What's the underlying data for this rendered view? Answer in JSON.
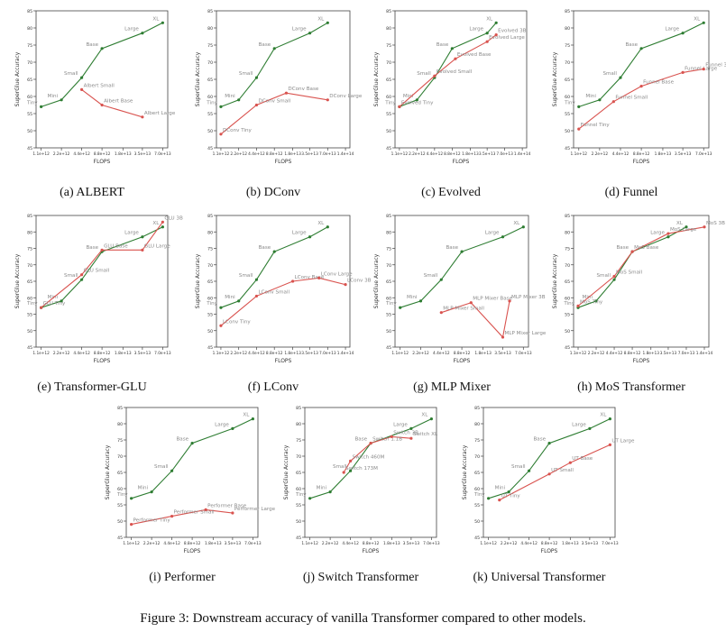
{
  "figure_caption": "Figure 3: Downstream accuracy of vanilla Transformer compared to other models.",
  "colors": {
    "baseline": "#2e7d32",
    "variant": "#d9534f",
    "axis": "#444444",
    "label": "#8a8a8a"
  },
  "common": {
    "xlabel": "FLOPS",
    "ylabel": "SuperGlue Accuracy",
    "yticks": [
      "45",
      "50",
      "55",
      "60",
      "65",
      "70",
      "75",
      "80",
      "85"
    ],
    "xticks_a": [
      "1.1e+12",
      "2.2e+12",
      "4.4e+12",
      "8.8e+12",
      "1.8e+13",
      "3.5e+13",
      "7.0e+13"
    ],
    "xticks_b": [
      "1.1e+12",
      "2.2e+12",
      "4.4e+12",
      "8.8e+12",
      "1.8e+13",
      "3.5e+13",
      "7.0e+13",
      "1.4e+14"
    ]
  },
  "chart_data": [
    {
      "type": "line",
      "caption": "(a) ALBERT",
      "xlabel": "FLOPS",
      "ylabel": "SuperGlue Accuracy",
      "x_scale": "log2",
      "xticks": "a",
      "ylim": [
        45,
        85
      ],
      "series": [
        {
          "role": "baseline",
          "points": [
            {
              "label": "Tiny",
              "x": 1100000000000.0,
              "y": 57.0
            },
            {
              "label": "Mini",
              "x": 2200000000000.0,
              "y": 59.0
            },
            {
              "label": "Small",
              "x": 4400000000000.0,
              "y": 65.5
            },
            {
              "label": "Base",
              "x": 8800000000000.0,
              "y": 74.0
            },
            {
              "label": "Large",
              "x": 35000000000000.0,
              "y": 78.5
            },
            {
              "label": "XL",
              "x": 70000000000000.0,
              "y": 81.5
            }
          ]
        },
        {
          "role": "variant",
          "points": [
            {
              "label": "Albert Small",
              "x": 4400000000000.0,
              "y": 62.0
            },
            {
              "label": "Albert Base",
              "x": 8800000000000.0,
              "y": 57.5
            },
            {
              "label": "Albert Large",
              "x": 35000000000000.0,
              "y": 54.0
            }
          ]
        }
      ]
    },
    {
      "type": "line",
      "caption": "(b) DConv",
      "xlabel": "FLOPS",
      "ylabel": "SuperGlue Accuracy",
      "x_scale": "log2",
      "xticks": "b",
      "ylim": [
        45,
        85
      ],
      "series": [
        {
          "role": "baseline",
          "points": [
            {
              "label": "Tiny",
              "x": 1100000000000.0,
              "y": 57.0
            },
            {
              "label": "Mini",
              "x": 2200000000000.0,
              "y": 59.0
            },
            {
              "label": "Small",
              "x": 4400000000000.0,
              "y": 65.5
            },
            {
              "label": "Base",
              "x": 8800000000000.0,
              "y": 74.0
            },
            {
              "label": "Large",
              "x": 35000000000000.0,
              "y": 78.5
            },
            {
              "label": "XL",
              "x": 70000000000000.0,
              "y": 81.5
            }
          ]
        },
        {
          "role": "variant",
          "points": [
            {
              "label": "DConv Tiny",
              "x": 1100000000000.0,
              "y": 49.0
            },
            {
              "label": "DConv Small",
              "x": 4400000000000.0,
              "y": 57.5
            },
            {
              "label": "DConv Base",
              "x": 14000000000000.0,
              "y": 61.0
            },
            {
              "label": "DConv Large",
              "x": 70000000000000.0,
              "y": 59.0
            }
          ]
        }
      ]
    },
    {
      "type": "line",
      "caption": "(c) Evolved",
      "xlabel": "FLOPS",
      "ylabel": "SuperGlue Accuracy",
      "x_scale": "log2",
      "xticks": "b",
      "ylim": [
        45,
        85
      ],
      "series": [
        {
          "role": "baseline",
          "points": [
            {
              "label": "Tiny",
              "x": 1100000000000.0,
              "y": 57.0
            },
            {
              "label": "Mini",
              "x": 2200000000000.0,
              "y": 59.0
            },
            {
              "label": "Small",
              "x": 4400000000000.0,
              "y": 65.5
            },
            {
              "label": "Base",
              "x": 8800000000000.0,
              "y": 74.0
            },
            {
              "label": "Large",
              "x": 35000000000000.0,
              "y": 78.5
            },
            {
              "label": "XL",
              "x": 50000000000000.0,
              "y": 81.5
            }
          ]
        },
        {
          "role": "variant",
          "points": [
            {
              "label": "Evolved Tiny",
              "x": 1100000000000.0,
              "y": 57.0
            },
            {
              "label": "Evolved Small",
              "x": 4400000000000.0,
              "y": 66.0
            },
            {
              "label": "Evolved Base",
              "x": 10000000000000.0,
              "y": 71.0
            },
            {
              "label": "Evolved Large",
              "x": 35000000000000.0,
              "y": 76.0
            },
            {
              "label": "Evolved 3B",
              "x": 50000000000000.0,
              "y": 78.0
            }
          ]
        }
      ]
    },
    {
      "type": "line",
      "caption": "(d) Funnel",
      "xlabel": "FLOPS",
      "ylabel": "SuperGlue Accuracy",
      "x_scale": "log2",
      "xticks": "a",
      "ylim": [
        45,
        85
      ],
      "series": [
        {
          "role": "baseline",
          "points": [
            {
              "label": "Tiny",
              "x": 1100000000000.0,
              "y": 57.0
            },
            {
              "label": "Mini",
              "x": 2200000000000.0,
              "y": 59.0
            },
            {
              "label": "Small",
              "x": 4400000000000.0,
              "y": 65.5
            },
            {
              "label": "Base",
              "x": 8800000000000.0,
              "y": 74.0
            },
            {
              "label": "Large",
              "x": 35000000000000.0,
              "y": 78.5
            },
            {
              "label": "XL",
              "x": 70000000000000.0,
              "y": 81.5
            }
          ]
        },
        {
          "role": "variant",
          "points": [
            {
              "label": "Funnel Tiny",
              "x": 1100000000000.0,
              "y": 50.5
            },
            {
              "label": "Funnel Small",
              "x": 3500000000000.0,
              "y": 58.5
            },
            {
              "label": "Funnel Base",
              "x": 8800000000000.0,
              "y": 63.0
            },
            {
              "label": "Funnel Large",
              "x": 35000000000000.0,
              "y": 67.0
            },
            {
              "label": "Funnel 3B",
              "x": 70000000000000.0,
              "y": 68.0
            }
          ]
        }
      ]
    },
    {
      "type": "line",
      "caption": "(e) Transformer-GLU",
      "xlabel": "FLOPS",
      "ylabel": "SuperGlue Accuracy",
      "x_scale": "log2",
      "xticks": "a",
      "ylim": [
        45,
        85
      ],
      "series": [
        {
          "role": "baseline",
          "points": [
            {
              "label": "Tiny",
              "x": 1100000000000.0,
              "y": 57.0
            },
            {
              "label": "Mini",
              "x": 2200000000000.0,
              "y": 59.0
            },
            {
              "label": "Small",
              "x": 4400000000000.0,
              "y": 65.5
            },
            {
              "label": "Base",
              "x": 8800000000000.0,
              "y": 74.0
            },
            {
              "label": "Large",
              "x": 35000000000000.0,
              "y": 78.5
            },
            {
              "label": "XL",
              "x": 70000000000000.0,
              "y": 81.5
            }
          ]
        },
        {
          "role": "variant",
          "points": [
            {
              "label": "GLU Tiny",
              "x": 1100000000000.0,
              "y": 57.0
            },
            {
              "label": "GLU Small",
              "x": 4400000000000.0,
              "y": 67.0
            },
            {
              "label": "GLU Base",
              "x": 8800000000000.0,
              "y": 74.5
            },
            {
              "label": "GLU Large",
              "x": 35000000000000.0,
              "y": 74.5
            },
            {
              "label": "GLU 3B",
              "x": 70000000000000.0,
              "y": 83.0
            }
          ]
        }
      ]
    },
    {
      "type": "line",
      "caption": "(f) LConv",
      "xlabel": "FLOPS",
      "ylabel": "SuperGlue Accuracy",
      "x_scale": "log2",
      "xticks": "b",
      "ylim": [
        45,
        85
      ],
      "series": [
        {
          "role": "baseline",
          "points": [
            {
              "label": "Tiny",
              "x": 1100000000000.0,
              "y": 57.0
            },
            {
              "label": "Mini",
              "x": 2200000000000.0,
              "y": 59.0
            },
            {
              "label": "Small",
              "x": 4400000000000.0,
              "y": 65.5
            },
            {
              "label": "Base",
              "x": 8800000000000.0,
              "y": 74.0
            },
            {
              "label": "Large",
              "x": 35000000000000.0,
              "y": 78.5
            },
            {
              "label": "XL",
              "x": 70000000000000.0,
              "y": 81.5
            }
          ]
        },
        {
          "role": "variant",
          "points": [
            {
              "label": "LConv Tiny",
              "x": 1100000000000.0,
              "y": 51.5
            },
            {
              "label": "LConv Small",
              "x": 4400000000000.0,
              "y": 60.5
            },
            {
              "label": "LConv Base",
              "x": 18000000000000.0,
              "y": 65.0
            },
            {
              "label": "LConv Large",
              "x": 50000000000000.0,
              "y": 66.0
            },
            {
              "label": "LConv 3B",
              "x": 140000000000000.0,
              "y": 64.0
            }
          ]
        }
      ]
    },
    {
      "type": "line",
      "caption": "(g) MLP Mixer",
      "xlabel": "FLOPS",
      "ylabel": "SuperGlue Accuracy",
      "x_scale": "log2",
      "xticks": "a",
      "ylim": [
        45,
        85
      ],
      "series": [
        {
          "role": "baseline",
          "points": [
            {
              "label": "Tiny",
              "x": 1100000000000.0,
              "y": 57.0
            },
            {
              "label": "Mini",
              "x": 2200000000000.0,
              "y": 59.0
            },
            {
              "label": "Small",
              "x": 4400000000000.0,
              "y": 65.5
            },
            {
              "label": "Base",
              "x": 8800000000000.0,
              "y": 74.0
            },
            {
              "label": "Large",
              "x": 35000000000000.0,
              "y": 78.5
            },
            {
              "label": "XL",
              "x": 70000000000000.0,
              "y": 81.5
            }
          ]
        },
        {
          "role": "variant",
          "points": [
            {
              "label": "MLP Mixer Small",
              "x": 4400000000000.0,
              "y": 55.5
            },
            {
              "label": "MLP Mixer Base",
              "x": 12000000000000.0,
              "y": 58.5
            },
            {
              "label": "MLP Mixer Large",
              "x": 35000000000000.0,
              "y": 48.0
            },
            {
              "label": "MLP Mixer 3B",
              "x": 44000000000000.0,
              "y": 59.0
            }
          ]
        }
      ]
    },
    {
      "type": "line",
      "caption": "(h) MoS Transformer",
      "xlabel": "FLOPS",
      "ylabel": "SuperGlue Accuracy",
      "x_scale": "log2",
      "xticks": "b",
      "ylim": [
        45,
        85
      ],
      "series": [
        {
          "role": "baseline",
          "points": [
            {
              "label": "Tiny",
              "x": 1100000000000.0,
              "y": 57.0
            },
            {
              "label": "Mini",
              "x": 2200000000000.0,
              "y": 59.0
            },
            {
              "label": "Small",
              "x": 4400000000000.0,
              "y": 65.5
            },
            {
              "label": "Base",
              "x": 8800000000000.0,
              "y": 74.0
            },
            {
              "label": "Large",
              "x": 35000000000000.0,
              "y": 78.5
            },
            {
              "label": "XL",
              "x": 70000000000000.0,
              "y": 81.5
            }
          ]
        },
        {
          "role": "variant",
          "points": [
            {
              "label": "MoS Tiny",
              "x": 1100000000000.0,
              "y": 57.5
            },
            {
              "label": "MoS Small",
              "x": 4400000000000.0,
              "y": 66.5
            },
            {
              "label": "MoS Base",
              "x": 8800000000000.0,
              "y": 74.0
            },
            {
              "label": "MoS Large",
              "x": 35000000000000.0,
              "y": 79.5
            },
            {
              "label": "MoS 3B",
              "x": 140000000000000.0,
              "y": 81.5
            }
          ]
        }
      ]
    },
    {
      "type": "line",
      "caption": "(i) Performer",
      "xlabel": "FLOPS",
      "ylabel": "SuperGlue Accuracy",
      "x_scale": "log2",
      "xticks": "a",
      "ylim": [
        45,
        85
      ],
      "series": [
        {
          "role": "baseline",
          "points": [
            {
              "label": "Tiny",
              "x": 1100000000000.0,
              "y": 57.0
            },
            {
              "label": "Mini",
              "x": 2200000000000.0,
              "y": 59.0
            },
            {
              "label": "Small",
              "x": 4400000000000.0,
              "y": 65.5
            },
            {
              "label": "Base",
              "x": 8800000000000.0,
              "y": 74.0
            },
            {
              "label": "Large",
              "x": 35000000000000.0,
              "y": 78.5
            },
            {
              "label": "XL",
              "x": 70000000000000.0,
              "y": 81.5
            }
          ]
        },
        {
          "role": "variant",
          "points": [
            {
              "label": "Performer Tiny",
              "x": 1100000000000.0,
              "y": 49.0
            },
            {
              "label": "Performer Small",
              "x": 4400000000000.0,
              "y": 51.5
            },
            {
              "label": "Performer Base",
              "x": 14000000000000.0,
              "y": 53.5
            },
            {
              "label": "Performer Large",
              "x": 35000000000000.0,
              "y": 52.5
            }
          ]
        }
      ]
    },
    {
      "type": "line",
      "caption": "(j) Switch Transformer",
      "xlabel": "FLOPS",
      "ylabel": "SuperGlue Accuracy",
      "x_scale": "log2",
      "xticks": "a",
      "ylim": [
        45,
        85
      ],
      "series": [
        {
          "role": "baseline",
          "points": [
            {
              "label": "Tiny",
              "x": 1100000000000.0,
              "y": 57.0
            },
            {
              "label": "Mini",
              "x": 2200000000000.0,
              "y": 59.0
            },
            {
              "label": "Small",
              "x": 4400000000000.0,
              "y": 65.5
            },
            {
              "label": "Base",
              "x": 8800000000000.0,
              "y": 74.0
            },
            {
              "label": "Large",
              "x": 35000000000000.0,
              "y": 78.5
            },
            {
              "label": "XL",
              "x": 70000000000000.0,
              "y": 81.5
            }
          ]
        },
        {
          "role": "variant",
          "points": [
            {
              "label": "Switch 173M",
              "x": 3500000000000.0,
              "y": 65.0
            },
            {
              "label": "Switch 460M",
              "x": 4400000000000.0,
              "y": 68.5
            },
            {
              "label": "Switch 1.1B",
              "x": 8800000000000.0,
              "y": 74.0
            },
            {
              "label": "Switch 3B",
              "x": 18000000000000.0,
              "y": 76.0
            },
            {
              "label": "Switch XL",
              "x": 35000000000000.0,
              "y": 75.5
            }
          ]
        }
      ]
    },
    {
      "type": "line",
      "caption": "(k) Universal Transformer",
      "xlabel": "FLOPS",
      "ylabel": "SuperGlue Accuracy",
      "x_scale": "log2",
      "xticks": "a",
      "ylim": [
        45,
        85
      ],
      "series": [
        {
          "role": "baseline",
          "points": [
            {
              "label": "Tiny",
              "x": 1100000000000.0,
              "y": 57.0
            },
            {
              "label": "Mini",
              "x": 2200000000000.0,
              "y": 59.0
            },
            {
              "label": "Small",
              "x": 4400000000000.0,
              "y": 65.5
            },
            {
              "label": "Base",
              "x": 8800000000000.0,
              "y": 74.0
            },
            {
              "label": "Large",
              "x": 35000000000000.0,
              "y": 78.5
            },
            {
              "label": "XL",
              "x": 70000000000000.0,
              "y": 81.5
            }
          ]
        },
        {
          "role": "variant",
          "points": [
            {
              "label": "UT Tiny",
              "x": 1600000000000.0,
              "y": 56.5
            },
            {
              "label": "UT Small",
              "x": 8800000000000.0,
              "y": 64.5
            },
            {
              "label": "UT Base",
              "x": 18000000000000.0,
              "y": 68.0
            },
            {
              "label": "UT Large",
              "x": 70000000000000.0,
              "y": 73.5
            }
          ]
        }
      ]
    }
  ]
}
